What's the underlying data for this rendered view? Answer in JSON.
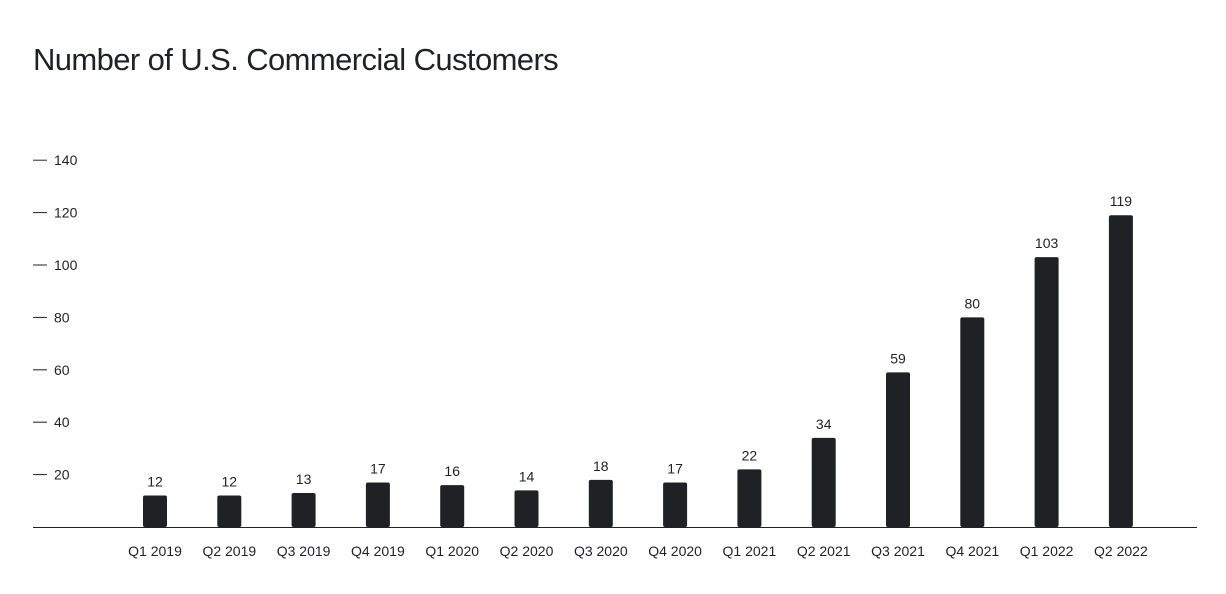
{
  "chart_data": {
    "type": "bar",
    "title": "Number of U.S. Commercial Customers",
    "categories": [
      "Q1 2019",
      "Q2 2019",
      "Q3 2019",
      "Q4 2019",
      "Q1 2020",
      "Q2 2020",
      "Q3 2020",
      "Q4 2020",
      "Q1 2021",
      "Q2 2021",
      "Q3 2021",
      "Q4 2021",
      "Q1 2022",
      "Q2 2022"
    ],
    "values": [
      12,
      12,
      13,
      17,
      16,
      14,
      18,
      17,
      22,
      34,
      59,
      80,
      103,
      119
    ],
    "data_labels": [
      "12",
      "12",
      "13",
      "17",
      "16",
      "14",
      "18",
      "17",
      "22",
      "34",
      "59",
      "80",
      "103",
      "119"
    ],
    "yticks": [
      "20",
      "40",
      "60",
      "80",
      "100",
      "120",
      "140"
    ],
    "ylim": [
      0,
      140
    ],
    "grid": false,
    "legend": "none",
    "colors": {
      "bar": "#1f2124",
      "text": "#1f2124",
      "axis": "#1f2124",
      "background": "#ffffff"
    }
  }
}
